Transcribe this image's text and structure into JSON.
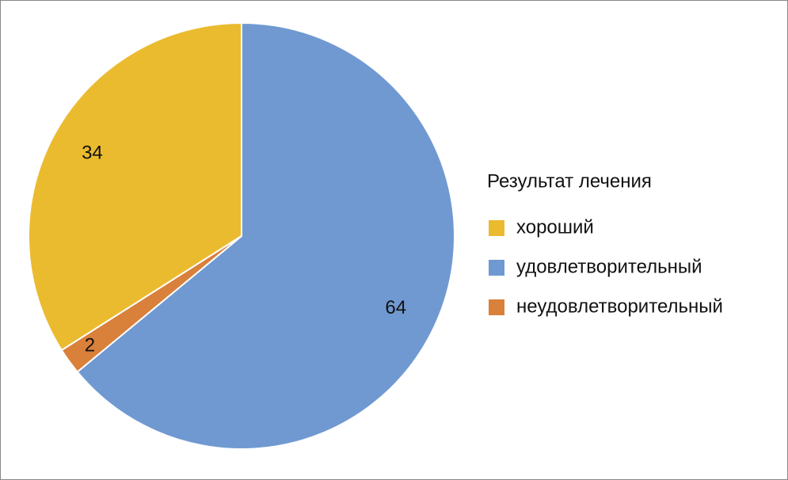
{
  "chart_data": {
    "type": "pie",
    "legend_title": "Результат лечения",
    "categories": [
      "хороший",
      "удовлетворительный",
      "неудовлетворительный"
    ],
    "values": [
      34,
      64,
      2
    ],
    "colors": [
      "#ebbb2f",
      "#7099d1",
      "#d9803a"
    ],
    "legend": "right"
  }
}
